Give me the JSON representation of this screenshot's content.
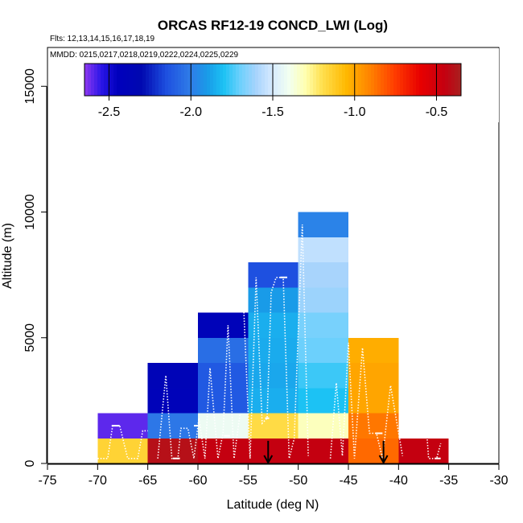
{
  "chart_data": {
    "type": "heatmap",
    "title": "ORCAS RF12-19 CONCD_LWI (Log)",
    "flights_note": "Flts: 12,13,14,15,16,17,18,19",
    "dates_note": "MMDD: 0215,0217,0218,0219,0222,0224,0225,0229",
    "xlabel": "Latitude (deg N)",
    "ylabel": "Altitude (m)",
    "xlim": [
      -75,
      -30
    ],
    "ylim": [
      0,
      16000
    ],
    "x_ticks": [
      "-75",
      "-70",
      "-65",
      "-60",
      "-55",
      "-50",
      "-45",
      "-40",
      "-35",
      "-30"
    ],
    "y_ticks": [
      "0",
      "5000",
      "10000",
      "15000"
    ],
    "colorbar": {
      "range": [
        -2.65,
        -0.35
      ],
      "tick_values": [
        -2.5,
        -2.0,
        -1.5,
        -1.0,
        -0.5
      ],
      "tick_labels": [
        "-2.5",
        "-2.0",
        "-1.5",
        "-1.0",
        "-0.5"
      ],
      "stops": [
        {
          "v": -2.65,
          "c": "#8f3af0"
        },
        {
          "v": -2.55,
          "c": "#2b16e8"
        },
        {
          "v": -2.45,
          "c": "#0000bd"
        },
        {
          "v": -2.3,
          "c": "#0008b0"
        },
        {
          "v": -2.15,
          "c": "#1e50e0"
        },
        {
          "v": -2.0,
          "c": "#2f7de8"
        },
        {
          "v": -1.9,
          "c": "#199be8"
        },
        {
          "v": -1.8,
          "c": "#1cc2f4"
        },
        {
          "v": -1.7,
          "c": "#6cd0fc"
        },
        {
          "v": -1.6,
          "c": "#a8d4fc"
        },
        {
          "v": -1.5,
          "c": "#d7ebff"
        },
        {
          "v": -1.4,
          "c": "#f2fff0"
        },
        {
          "v": -1.3,
          "c": "#ffffb0"
        },
        {
          "v": -1.2,
          "c": "#ffe050"
        },
        {
          "v": -1.05,
          "c": "#ffb800"
        },
        {
          "v": -0.9,
          "c": "#ff8000"
        },
        {
          "v": -0.75,
          "c": "#ff3a00"
        },
        {
          "v": -0.6,
          "c": "#e80000"
        },
        {
          "v": -0.45,
          "c": "#c40010"
        },
        {
          "v": -0.35,
          "c": "#a82020"
        }
      ]
    },
    "cells": [
      {
        "lat": [
          -70,
          -65
        ],
        "alt": [
          0,
          1000
        ],
        "value": -1.15
      },
      {
        "lat": [
          -70,
          -65
        ],
        "alt": [
          1000,
          2000
        ],
        "value": -2.6
      },
      {
        "lat": [
          -65,
          -60
        ],
        "alt": [
          0,
          1000
        ],
        "value": -0.4
      },
      {
        "lat": [
          -65,
          -60
        ],
        "alt": [
          1000,
          2000
        ],
        "value": -2.02
      },
      {
        "lat": [
          -65,
          -60
        ],
        "alt": [
          2000,
          3000
        ],
        "value": -2.4
      },
      {
        "lat": [
          -65,
          -60
        ],
        "alt": [
          3000,
          4000
        ],
        "value": -2.38
      },
      {
        "lat": [
          -60,
          -55
        ],
        "alt": [
          0,
          1000
        ],
        "value": -0.45
      },
      {
        "lat": [
          -60,
          -55
        ],
        "alt": [
          1000,
          2000
        ],
        "value": -1.42
      },
      {
        "lat": [
          -60,
          -55
        ],
        "alt": [
          2000,
          3000
        ],
        "value": -2.12
      },
      {
        "lat": [
          -60,
          -55
        ],
        "alt": [
          3000,
          4000
        ],
        "value": -2.12
      },
      {
        "lat": [
          -60,
          -55
        ],
        "alt": [
          4000,
          5000
        ],
        "value": -2.05
      },
      {
        "lat": [
          -60,
          -55
        ],
        "alt": [
          5000,
          6000
        ],
        "value": -2.4
      },
      {
        "lat": [
          -55,
          -50
        ],
        "alt": [
          0,
          1000
        ],
        "value": -0.45
      },
      {
        "lat": [
          -55,
          -50
        ],
        "alt": [
          1000,
          2000
        ],
        "value": -1.18
      },
      {
        "lat": [
          -55,
          -50
        ],
        "alt": [
          2000,
          3000
        ],
        "value": -1.85
      },
      {
        "lat": [
          -55,
          -50
        ],
        "alt": [
          3000,
          4000
        ],
        "value": -1.87
      },
      {
        "lat": [
          -55,
          -50
        ],
        "alt": [
          4000,
          5000
        ],
        "value": -1.86
      },
      {
        "lat": [
          -55,
          -50
        ],
        "alt": [
          5000,
          6000
        ],
        "value": -1.85
      },
      {
        "lat": [
          -55,
          -50
        ],
        "alt": [
          6000,
          7000
        ],
        "value": -1.9
      },
      {
        "lat": [
          -55,
          -50
        ],
        "alt": [
          7000,
          8000
        ],
        "value": -2.15
      },
      {
        "lat": [
          -50,
          -45
        ],
        "alt": [
          0,
          1000
        ],
        "value": -0.45
      },
      {
        "lat": [
          -50,
          -45
        ],
        "alt": [
          1000,
          2000
        ],
        "value": -1.32
      },
      {
        "lat": [
          -50,
          -45
        ],
        "alt": [
          2000,
          3000
        ],
        "value": -1.8
      },
      {
        "lat": [
          -50,
          -45
        ],
        "alt": [
          3000,
          4000
        ],
        "value": -1.76
      },
      {
        "lat": [
          -50,
          -45
        ],
        "alt": [
          4000,
          5000
        ],
        "value": -1.7
      },
      {
        "lat": [
          -50,
          -45
        ],
        "alt": [
          5000,
          6000
        ],
        "value": -1.68
      },
      {
        "lat": [
          -50,
          -45
        ],
        "alt": [
          6000,
          7000
        ],
        "value": -1.62
      },
      {
        "lat": [
          -50,
          -45
        ],
        "alt": [
          7000,
          8000
        ],
        "value": -1.6
      },
      {
        "lat": [
          -50,
          -45
        ],
        "alt": [
          8000,
          9000
        ],
        "value": -1.55
      },
      {
        "lat": [
          -50,
          -45
        ],
        "alt": [
          9000,
          10000
        ],
        "value": -1.98
      },
      {
        "lat": [
          -45,
          -40
        ],
        "alt": [
          0,
          1000
        ],
        "value": -0.85
      },
      {
        "lat": [
          -45,
          -40
        ],
        "alt": [
          1000,
          2000
        ],
        "value": -0.88
      },
      {
        "lat": [
          -45,
          -40
        ],
        "alt": [
          2000,
          3000
        ],
        "value": -1.0
      },
      {
        "lat": [
          -45,
          -40
        ],
        "alt": [
          3000,
          4000
        ],
        "value": -1.0
      },
      {
        "lat": [
          -45,
          -40
        ],
        "alt": [
          4000,
          5000
        ],
        "value": -1.02
      },
      {
        "lat": [
          -40,
          -35
        ],
        "alt": [
          0,
          1000
        ],
        "value": -0.45
      }
    ],
    "arrow_markers_lat": [
      -53,
      -41.5
    ],
    "flight_track_color": "white"
  }
}
